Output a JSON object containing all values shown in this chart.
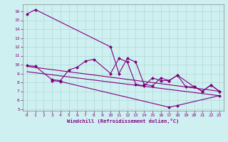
{
  "xlabel": "Windchill (Refroidissement éolien,°C)",
  "xlim": [
    -0.5,
    23.5
  ],
  "ylim": [
    4.8,
    16.8
  ],
  "yticks": [
    5,
    6,
    7,
    8,
    9,
    10,
    11,
    12,
    13,
    14,
    15,
    16
  ],
  "xticks": [
    0,
    1,
    2,
    3,
    4,
    5,
    6,
    7,
    8,
    9,
    10,
    11,
    12,
    13,
    14,
    15,
    16,
    17,
    18,
    19,
    20,
    21,
    22,
    23
  ],
  "background_color": "#cff0f0",
  "grid_color": "#b0d8d8",
  "line_color": "#800080",
  "main_x": [
    0,
    1,
    10,
    11,
    12,
    13,
    14,
    15,
    16,
    17,
    18,
    19,
    20,
    21,
    22,
    23
  ],
  "main_y": [
    15.7,
    16.2,
    12.0,
    9.0,
    10.7,
    10.3,
    7.8,
    7.6,
    8.5,
    8.2,
    8.8,
    7.5,
    7.5,
    7.0,
    7.7,
    7.0
  ],
  "mid_x": [
    0,
    1,
    3,
    4,
    5,
    6,
    7,
    8,
    10,
    11,
    12,
    13,
    14,
    15,
    16,
    17,
    18,
    20,
    21,
    22,
    23
  ],
  "mid_y": [
    9.9,
    9.8,
    8.3,
    8.2,
    9.4,
    9.7,
    10.4,
    10.6,
    9.0,
    10.7,
    10.3,
    7.8,
    7.6,
    8.5,
    8.2,
    8.2,
    8.8,
    7.5,
    7.0,
    7.7,
    7.0
  ],
  "low_x": [
    3,
    4,
    17,
    18,
    23
  ],
  "low_y": [
    8.2,
    8.1,
    5.2,
    5.4,
    6.5
  ],
  "trend1_x": [
    0,
    23
  ],
  "trend1_y": [
    9.8,
    7.0
  ],
  "trend2_x": [
    0,
    23
  ],
  "trend2_y": [
    9.2,
    6.5
  ],
  "marker": "D",
  "markersize": 2.5,
  "linewidth": 0.8
}
